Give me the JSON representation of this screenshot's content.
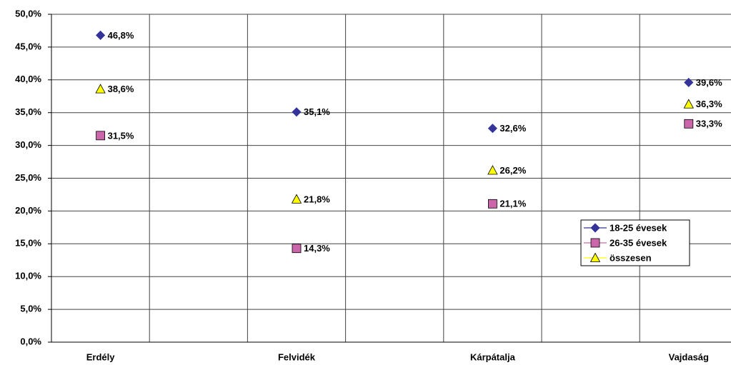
{
  "chart_data": {
    "type": "line",
    "categories": [
      "Erdély",
      "Felvidék",
      "Kárpátalja",
      "Vajdaság"
    ],
    "series": [
      {
        "name": "18-25 évesek",
        "color": "#333399",
        "marker": "diamond",
        "values": [
          46.8,
          35.1,
          32.6,
          39.6
        ],
        "value_labels": [
          "46,8%",
          "35,1%",
          "32,6%",
          "39,6%"
        ]
      },
      {
        "name": "26-35 évesek",
        "color": "#cc66aa",
        "marker": "square",
        "values": [
          31.5,
          14.3,
          21.1,
          33.3
        ],
        "value_labels": [
          "31,5%",
          "14,3%",
          "21,1%",
          "33,3%"
        ]
      },
      {
        "name": "összesen",
        "color": "#ffff00",
        "marker": "triangle",
        "values": [
          38.6,
          21.8,
          26.2,
          36.3
        ],
        "value_labels": [
          "38,6%",
          "21,8%",
          "26,2%",
          "36,3%"
        ]
      }
    ],
    "ylim": [
      0,
      50
    ],
    "yticks": [
      {
        "value": 0,
        "label": "0,0%"
      },
      {
        "value": 5,
        "label": "5,0%"
      },
      {
        "value": 10,
        "label": "10,0%"
      },
      {
        "value": 15,
        "label": "15,0%"
      },
      {
        "value": 20,
        "label": "20,0%"
      },
      {
        "value": 25,
        "label": "25,0%"
      },
      {
        "value": 30,
        "label": "30,0%"
      },
      {
        "value": 35,
        "label": "35,0%"
      },
      {
        "value": 40,
        "label": "40,0%"
      },
      {
        "value": 45,
        "label": "45,0%"
      },
      {
        "value": 50,
        "label": "50,0%"
      }
    ],
    "grid": true,
    "legend": "right"
  }
}
